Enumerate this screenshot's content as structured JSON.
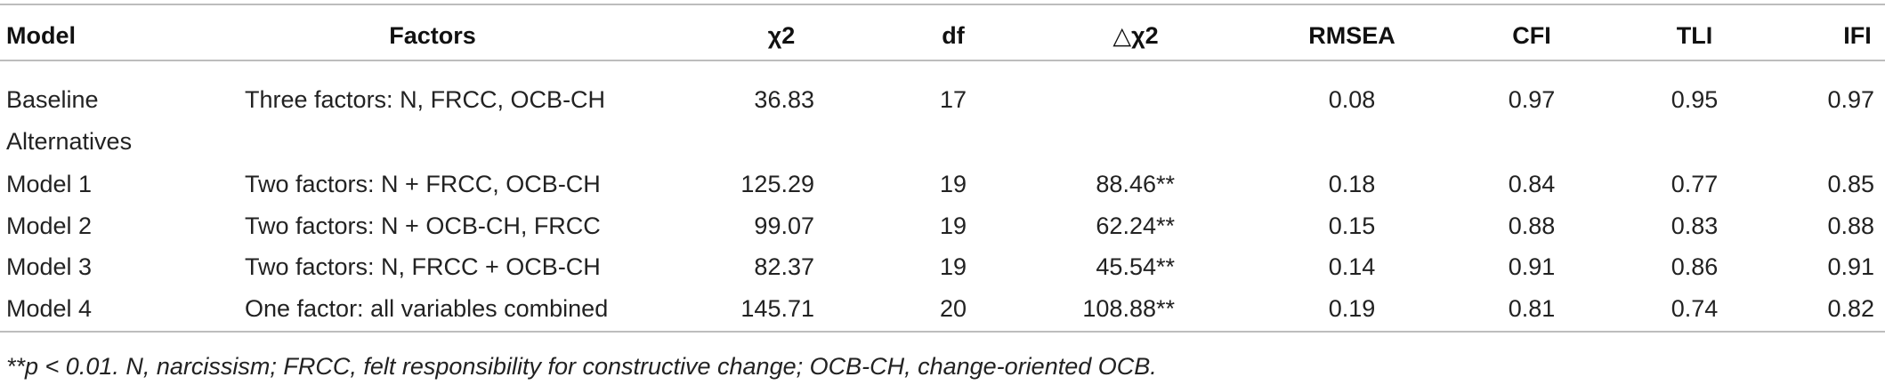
{
  "table": {
    "headers": {
      "model": "Model",
      "factors": "Factors",
      "chi2": "χ2",
      "df": "df",
      "delta_chi2": "△χ2",
      "rmsea": "RMSEA",
      "cfi": "CFI",
      "tli": "TLI",
      "ifi": "IFI"
    },
    "rows": [
      {
        "model": "Baseline",
        "factors": "Three factors: N, FRCC, OCB-CH",
        "chi2": "36.83",
        "df": "17",
        "rmsea": "0.08",
        "cfi": "0.97",
        "tli": "0.95",
        "ifi": "0.97"
      },
      {
        "model": "Alternatives"
      },
      {
        "model": "Model 1",
        "factors": "Two factors: N + FRCC, OCB-CH",
        "chi2": "125.29",
        "df": "19",
        "delta_chi2": "88.46**",
        "rmsea": "0.18",
        "cfi": "0.84",
        "tli": "0.77",
        "ifi": "0.85"
      },
      {
        "model": "Model 2",
        "factors": "Two factors: N + OCB-CH, FRCC",
        "chi2": "99.07",
        "df": "19",
        "delta_chi2": "62.24**",
        "rmsea": "0.15",
        "cfi": "0.88",
        "tli": "0.83",
        "ifi": "0.88"
      },
      {
        "model": "Model 3",
        "factors": "Two factors: N, FRCC + OCB-CH",
        "chi2": "82.37",
        "df": "19",
        "delta_chi2": "45.54**",
        "rmsea": "0.14",
        "cfi": "0.91",
        "tli": "0.86",
        "ifi": "0.91"
      },
      {
        "model": "Model 4",
        "factors": "One factor: all variables combined",
        "chi2": "145.71",
        "df": "20",
        "delta_chi2": "108.88**",
        "rmsea": "0.19",
        "cfi": "0.81",
        "tli": "0.74",
        "ifi": "0.82"
      }
    ],
    "footnote": "**p < 0.01. N, narcissism; FRCC, felt responsibility for constructive change; OCB-CH, change-oriented OCB."
  }
}
